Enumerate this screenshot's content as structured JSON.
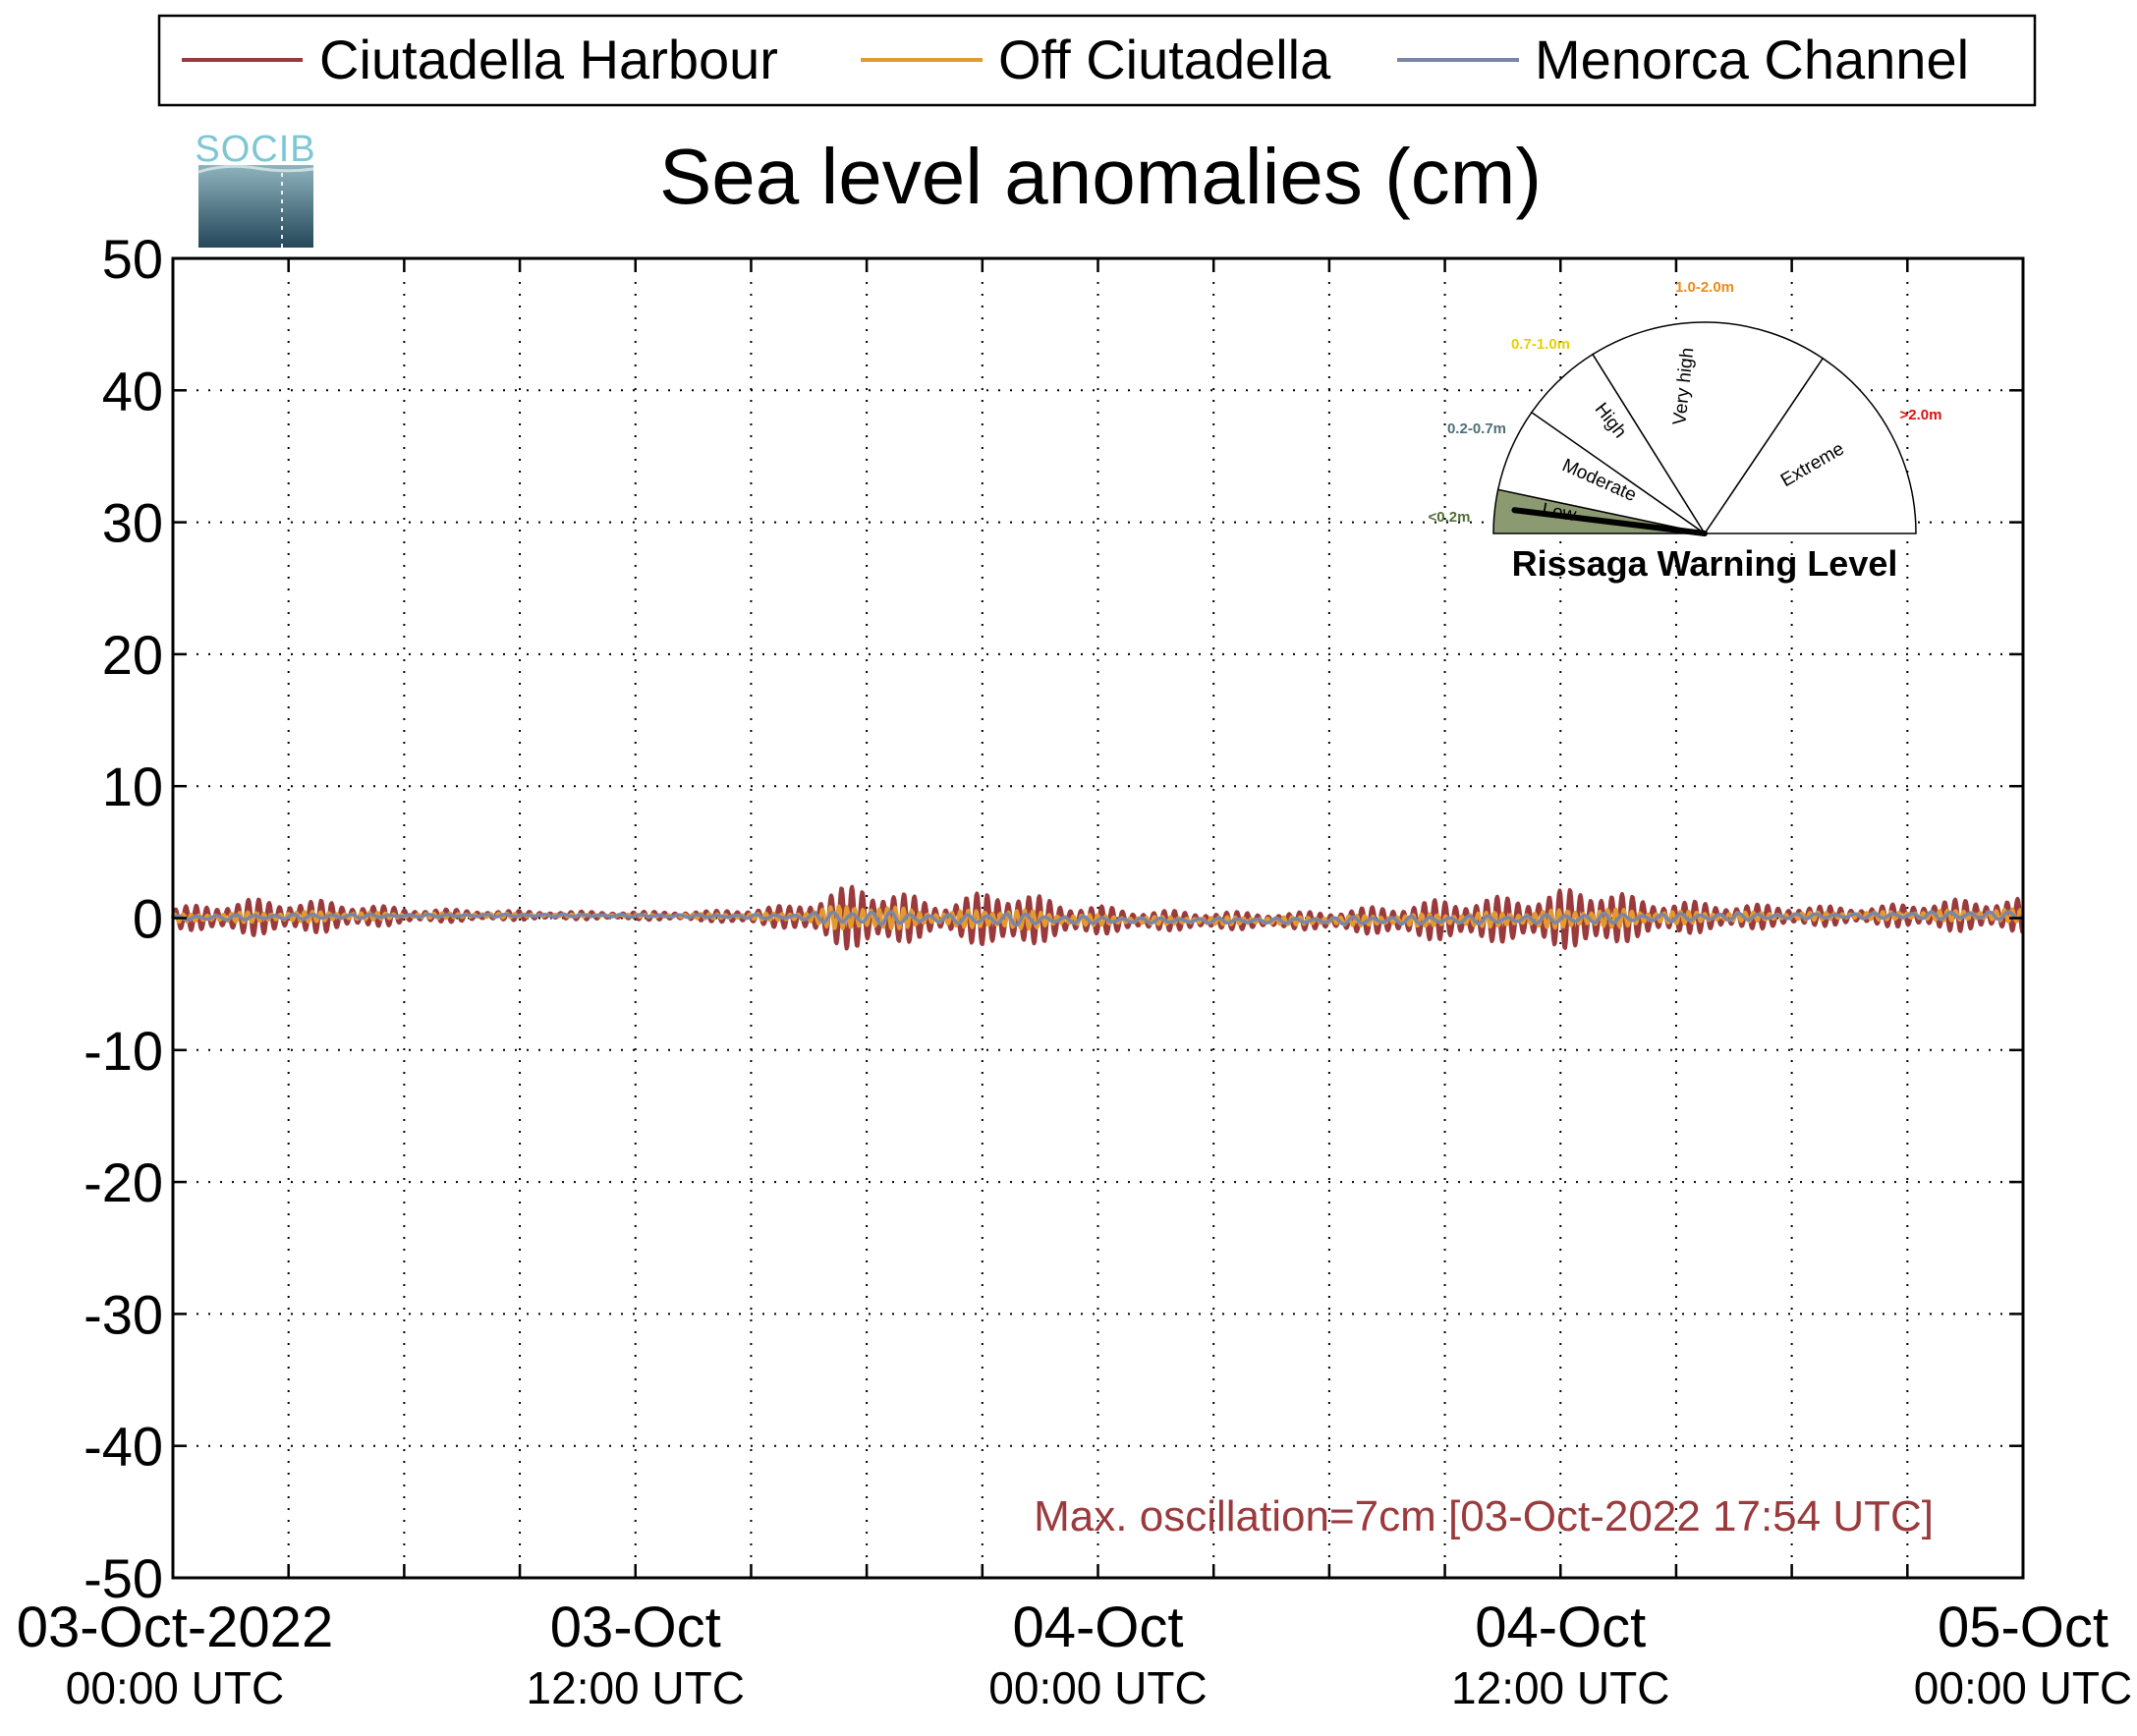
{
  "chart_data": {
    "type": "line",
    "title": "Sea level anomalies (cm)",
    "ylim": [
      -50,
      50
    ],
    "yticks": [
      50,
      40,
      30,
      20,
      10,
      0,
      -10,
      -20,
      -30,
      -40,
      -50
    ],
    "x_range_hours": [
      0,
      48
    ],
    "x_ticks": [
      {
        "hour": 0,
        "line1": "03-Oct-2022",
        "line2": "00:00 UTC"
      },
      {
        "hour": 12,
        "line1": "03-Oct",
        "line2": "12:00 UTC"
      },
      {
        "hour": 24,
        "line1": "04-Oct",
        "line2": "00:00 UTC"
      },
      {
        "hour": 36,
        "line1": "04-Oct",
        "line2": "12:00 UTC"
      },
      {
        "hour": 48,
        "line1": "05-Oct",
        "line2": "00:00 UTC"
      }
    ],
    "grid": true,
    "legend_position": "top",
    "series": [
      {
        "name": "Ciutadella Harbour",
        "color": "#9b3a3d"
      },
      {
        "name": "Off Ciutadella",
        "color": "#e39a2e"
      },
      {
        "name": "Menorca Channel",
        "color": "#7a86a8"
      }
    ],
    "amplitude_envelope": {
      "hours": [
        0,
        2,
        4,
        6,
        8,
        10,
        12,
        14,
        16,
        17.9,
        18.5,
        20,
        21.5,
        23,
        25,
        27,
        29,
        31,
        33,
        35,
        37,
        38,
        40,
        42,
        44,
        46,
        48
      ],
      "harbour_cm": [
        0.8,
        1.4,
        1.2,
        0.6,
        0.4,
        0.3,
        0.3,
        0.4,
        0.9,
        2.8,
        2.2,
        1.2,
        2.5,
        1.4,
        0.8,
        0.7,
        0.6,
        1.0,
        1.6,
        1.8,
        2.6,
        1.5,
        1.1,
        0.8,
        0.7,
        1.2,
        1.3
      ],
      "offshore_cm": [
        0.3,
        0.4,
        0.4,
        0.2,
        0.2,
        0.1,
        0.1,
        0.2,
        0.3,
        1.2,
        0.9,
        0.5,
        0.9,
        0.5,
        0.3,
        0.3,
        0.3,
        0.4,
        0.5,
        0.6,
        0.8,
        0.6,
        0.4,
        0.3,
        0.3,
        0.4,
        0.5
      ],
      "channel_cm": [
        0.2,
        0.2,
        0.2,
        0.1,
        0.1,
        0.1,
        0.1,
        0.1,
        0.2,
        0.6,
        0.5,
        0.3,
        0.5,
        0.3,
        0.2,
        0.2,
        0.2,
        0.3,
        0.3,
        0.3,
        0.4,
        0.3,
        0.3,
        0.2,
        0.2,
        0.3,
        0.3
      ]
    },
    "annotation": {
      "text": "Max. oscillation=7cm [03-Oct-2022 17:54 UTC]",
      "color": "#9b3a3d"
    }
  },
  "logo": {
    "text": "SOCIB"
  },
  "gauge": {
    "title": "Rissaga Warning Level",
    "current_level": "Low",
    "segments": [
      {
        "label": "Low",
        "range": "<0.2m",
        "range_color": "#556b3a",
        "fill": "#8c9a72"
      },
      {
        "label": "Moderate",
        "range": "0.2-0.7m",
        "range_color": "#4f6e7c",
        "fill": "#ffffff"
      },
      {
        "label": "High",
        "range": "0.7-1.0m",
        "range_color": "#e8d000",
        "fill": "#ffffff"
      },
      {
        "label": "Very high",
        "range": "1.0-2.0m",
        "range_color": "#ef8a1a",
        "fill": "#ffffff"
      },
      {
        "label": "Extreme",
        "range": ">2.0m",
        "range_color": "#e01010",
        "fill": "#ffffff"
      }
    ]
  }
}
